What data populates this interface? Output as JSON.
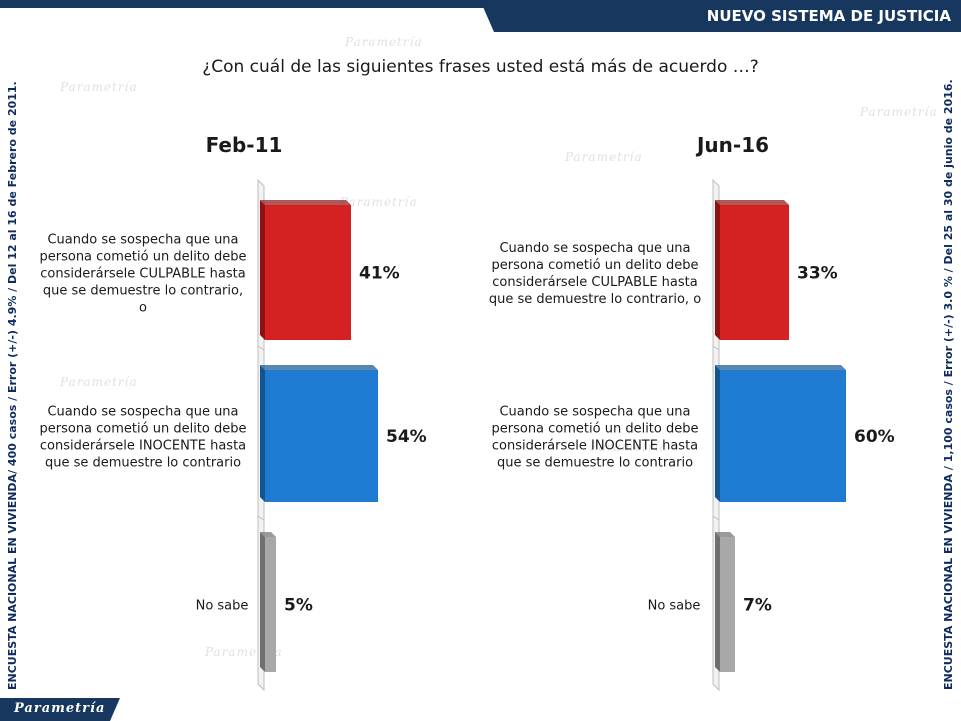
{
  "header": {
    "title": "NUEVO SISTEMA DE JUSTICIA"
  },
  "question": "¿Con cuál de las siguientes frases usted está más de acuerdo …?",
  "side_notes": {
    "left": "ENCUESTA NACIONAL EN VIVIENDA/ 400 casos / Error (+/-) 4.9% / Del 12 al 16 de Febrero de 2011.",
    "right": "ENCUESTA NACIONAL EN VIVIENDA / 1,100 casos / Error (+/-) 3.0 % / Del 25 al 30 de junio de 2016."
  },
  "logo": "Parametría",
  "colors": {
    "header": "#17375e",
    "culpable": "#d52121",
    "inocente": "#1f7ad1",
    "no_sabe": "#a8a8a8"
  },
  "chart_data": [
    {
      "type": "bar",
      "title": "Feb-11",
      "categories": [
        "Cuando se sospecha que una persona cometió un delito debe considerársele CULPABLE hasta que se demuestre lo contrario, o",
        "Cuando se sospecha que una persona cometió un delito debe considerársele INOCENTE hasta que se demuestre lo contrario",
        "No sabe"
      ],
      "values": [
        41,
        54,
        5
      ],
      "value_labels": [
        "41%",
        "54%",
        "5%"
      ]
    },
    {
      "type": "bar",
      "title": "Jun-16",
      "categories": [
        "Cuando se sospecha que una persona cometió un delito debe considerársele CULPABLE hasta que se demuestre lo contrario, o",
        "Cuando se sospecha que una persona cometió un delito debe considerársele INOCENTE hasta que se demuestre lo contrario",
        "No sabe"
      ],
      "values": [
        33,
        60,
        7
      ],
      "value_labels": [
        "33%",
        "60%",
        "7%"
      ]
    }
  ]
}
